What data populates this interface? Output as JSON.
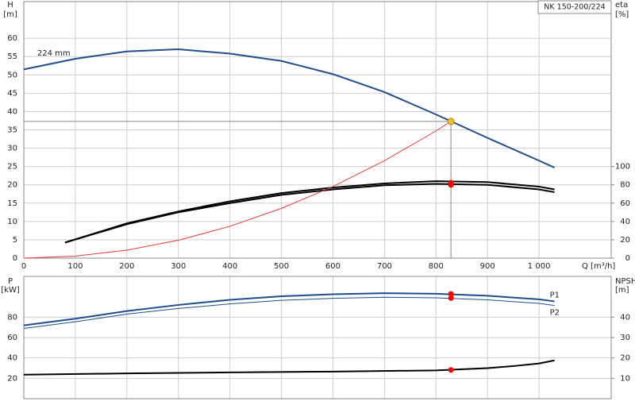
{
  "chart_data": [
    {
      "type": "line",
      "title": "NK 150-200/224",
      "xlabel": "Q [m³/h]",
      "ylabel": "H",
      "yunit": "[m]",
      "y2label": "eta",
      "y2unit": "[%]",
      "xlim": [
        0,
        1140
      ],
      "xticks": [
        0,
        100,
        200,
        300,
        400,
        500,
        600,
        700,
        800,
        900,
        {
          "value": 1000,
          "label": "1 000"
        }
      ],
      "ylim": [
        0,
        70
      ],
      "yticks": [
        0,
        5,
        10,
        15,
        20,
        25,
        30,
        35,
        40,
        45,
        50,
        55,
        60
      ],
      "y2lim": [
        0,
        280
      ],
      "y2ticks": [
        0,
        20,
        40,
        60,
        80,
        100
      ],
      "grid": true,
      "series": [
        {
          "name": "224 mm",
          "color": "#1f4e8c",
          "width": 2,
          "x": [
            0,
            100,
            200,
            300,
            400,
            500,
            600,
            700,
            800,
            900,
            1000,
            1030
          ],
          "values": [
            51.5,
            54.4,
            56.4,
            57,
            55.8,
            53.8,
            50.2,
            45.3,
            39.2,
            32.8,
            26.6,
            24.7
          ]
        },
        {
          "color": "#000000",
          "width": 2,
          "axis": "y2",
          "x": [
            80,
            200,
            300,
            400,
            500,
            600,
            700,
            800,
            900,
            1000,
            1030
          ],
          "values": [
            17,
            38,
            51,
            62,
            71,
            77,
            81.5,
            84,
            83,
            78,
            75
          ]
        },
        {
          "color": "#000000",
          "width": 2,
          "axis": "y2",
          "x": [
            80,
            200,
            300,
            400,
            500,
            600,
            700,
            800,
            900,
            1000,
            1030
          ],
          "values": [
            17,
            37,
            50,
            60,
            69,
            75,
            79.5,
            81,
            80,
            75,
            72
          ]
        },
        {
          "color": "#e8383d",
          "width": 1,
          "x": [
            0,
            100,
            200,
            300,
            400,
            500,
            600,
            700,
            800,
            829
          ],
          "values": [
            0,
            0.54,
            2.17,
            4.88,
            8.68,
            13.57,
            19.54,
            26.6,
            34.7,
            37.3
          ]
        }
      ],
      "markers": [
        {
          "x": 829,
          "value": 37.3,
          "color": "#f2c12e",
          "guide": true
        },
        {
          "x": 829,
          "value": 82.3,
          "axis": "y2",
          "color": "#ff0000"
        },
        {
          "x": 829,
          "value": 79.8,
          "axis": "y2",
          "color": "#ff0000"
        }
      ]
    },
    {
      "type": "line",
      "ylabel": "P",
      "yunit": "[kW]",
      "y2label": "NPSH",
      "y2unit": "[m]",
      "xlim": [
        0,
        1140
      ],
      "xgrid": [
        0,
        100,
        200,
        300,
        400,
        500,
        600,
        700,
        800,
        900,
        1000
      ],
      "ylim": [
        0,
        120
      ],
      "yticks": [
        20,
        40,
        60,
        80
      ],
      "y2lim": [
        0,
        60
      ],
      "y2ticks": [
        10,
        20,
        30,
        40
      ],
      "grid": true,
      "series": [
        {
          "name": "P1",
          "color": "#1f4e8c",
          "width": 2,
          "x": [
            0,
            100,
            200,
            300,
            400,
            500,
            600,
            700,
            800,
            900,
            1000,
            1030
          ],
          "values": [
            72,
            78.5,
            86,
            92,
            97,
            100.5,
            102.5,
            103.5,
            103,
            101,
            97.5,
            95.5
          ]
        },
        {
          "name": "P2",
          "color": "#1f4e8c",
          "width": 1,
          "x": [
            0,
            100,
            200,
            300,
            400,
            500,
            600,
            700,
            800,
            900,
            1000,
            1030
          ],
          "values": [
            69,
            75.5,
            83,
            88.5,
            93,
            96.5,
            98.5,
            99.5,
            99,
            97,
            93.5,
            91.5
          ]
        },
        {
          "color": "#000000",
          "width": 2,
          "axis": "y2",
          "x": [
            0,
            200,
            400,
            600,
            800,
            900,
            950,
            1000,
            1030
          ],
          "values": [
            11.8,
            12.4,
            12.9,
            13.3,
            13.9,
            15,
            16,
            17.3,
            18.8
          ]
        }
      ],
      "markers": [
        {
          "x": 829,
          "value": 102.8,
          "color": "#ff0000"
        },
        {
          "x": 829,
          "value": 98.7,
          "color": "#ff0000"
        },
        {
          "x": 829,
          "value": 14.1,
          "axis": "y2",
          "color": "#ff0000"
        }
      ]
    }
  ]
}
